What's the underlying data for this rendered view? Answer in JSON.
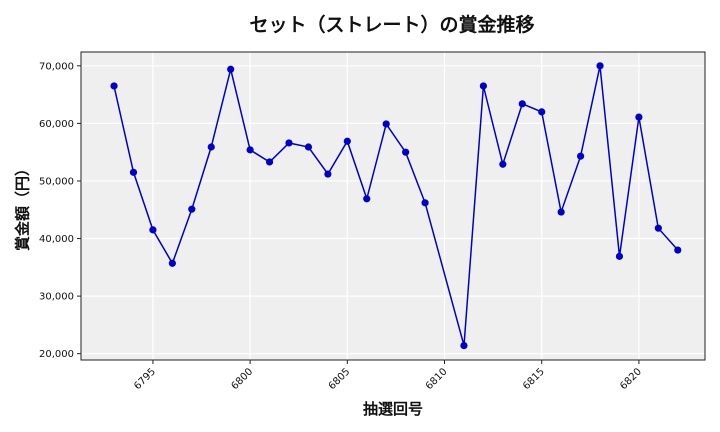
{
  "chart_data": {
    "type": "line",
    "title": "セット（ストレート）の賞金推移",
    "xlabel": "抽選回号",
    "ylabel": "賞金額（円）",
    "x": [
      6793,
      6794,
      6795,
      6796,
      6797,
      6798,
      6799,
      6800,
      6801,
      6802,
      6803,
      6804,
      6805,
      6806,
      6807,
      6808,
      6809,
      6811,
      6812,
      6813,
      6814,
      6815,
      6816,
      6817,
      6818,
      6819,
      6820,
      6821,
      6822
    ],
    "series": [
      {
        "name": "賞金額",
        "color": "#0000cc",
        "marker": "circle",
        "values": [
          66500,
          51500,
          41500,
          35700,
          45100,
          55900,
          69400,
          55400,
          53300,
          56600,
          55900,
          51200,
          56900,
          46900,
          59900,
          55000,
          46200,
          21400,
          66500,
          52900,
          63400,
          62000,
          44600,
          54300,
          70000,
          36900,
          61100,
          41800,
          38000
        ]
      }
    ],
    "xticks": [
      6795,
      6800,
      6805,
      6810,
      6815,
      6820
    ],
    "yticks": [
      20000,
      30000,
      40000,
      50000,
      60000,
      70000
    ],
    "ytick_labels": [
      "20,000",
      "30,000",
      "40,000",
      "50,000",
      "60,000",
      "70,000"
    ],
    "xlim": [
      6791.3,
      6823.4
    ],
    "ylim": [
      18900,
      72400
    ],
    "grid": true,
    "background": "#efefef",
    "legend": null
  }
}
